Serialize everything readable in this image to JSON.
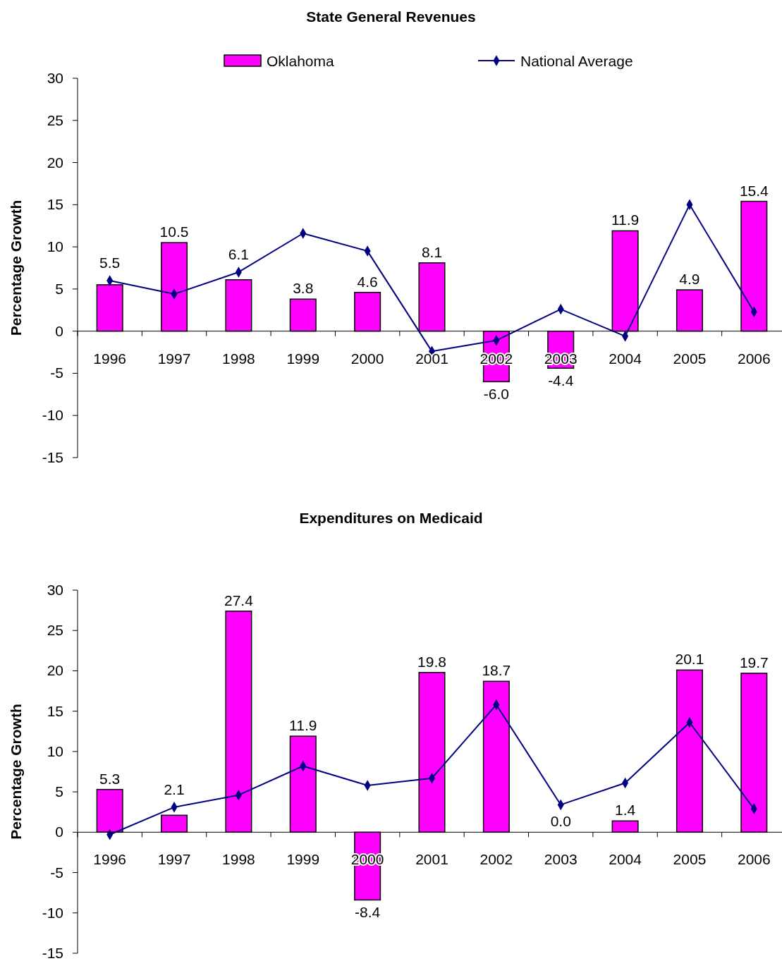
{
  "chart_data": [
    {
      "type": "bar",
      "title": "State General Revenues",
      "ylabel": "Percentage Growth",
      "categories": [
        "1996",
        "1997",
        "1998",
        "1999",
        "2000",
        "2001",
        "2002",
        "2003",
        "2004",
        "2005",
        "2006"
      ],
      "series": [
        {
          "name": "Oklahoma",
          "color": "#ff00ff",
          "values": [
            5.5,
            10.5,
            6.1,
            3.8,
            4.6,
            8.1,
            -6.0,
            -4.4,
            11.9,
            4.9,
            15.4
          ],
          "value_labels": [
            "5.5",
            "10.5",
            "6.1",
            "3.8",
            "4.6",
            "8.1",
            "-6.0",
            "-4.4",
            "11.9",
            "4.9",
            "15.4"
          ]
        },
        {
          "name": "National Average",
          "type": "line",
          "color": "#000080",
          "values": [
            6.0,
            4.4,
            7.0,
            11.6,
            9.5,
            -2.4,
            -1.1,
            2.6,
            -0.6,
            15.0,
            2.3
          ]
        }
      ],
      "ylim": [
        -15,
        30
      ],
      "yticks": [
        -15,
        -10,
        -5,
        0,
        5,
        10,
        15,
        20,
        25,
        30
      ],
      "grid": false,
      "legend": "top",
      "marker": "diamond",
      "line_style": "solid"
    },
    {
      "type": "bar",
      "title": "Expenditures on Medicaid",
      "ylabel": "Percentage Growth",
      "categories": [
        "1996",
        "1997",
        "1998",
        "1999",
        "2000",
        "2001",
        "2002",
        "2003",
        "2004",
        "2005",
        "2006"
      ],
      "series": [
        {
          "color": "#ff00ff",
          "values": [
            5.3,
            2.1,
            27.4,
            11.9,
            -8.4,
            19.8,
            18.7,
            0.0,
            1.4,
            20.1,
            19.7
          ],
          "value_labels": [
            "5.3",
            "2.1",
            "27.4",
            "11.9",
            "-8.4",
            "19.8",
            "18.7",
            "0.0",
            "1.4",
            "20.1",
            "19.7"
          ]
        },
        {
          "type": "line",
          "color": "#000080",
          "values": [
            -0.3,
            3.1,
            4.6,
            8.2,
            5.8,
            6.7,
            15.8,
            3.4,
            6.1,
            13.6,
            2.9
          ]
        }
      ],
      "ylim": [
        -15,
        30
      ],
      "yticks": [
        -15,
        -10,
        -5,
        0,
        5,
        10,
        15,
        20,
        25,
        30
      ],
      "grid": false,
      "legend": false,
      "marker": "diamond",
      "line_style": "solid"
    }
  ]
}
